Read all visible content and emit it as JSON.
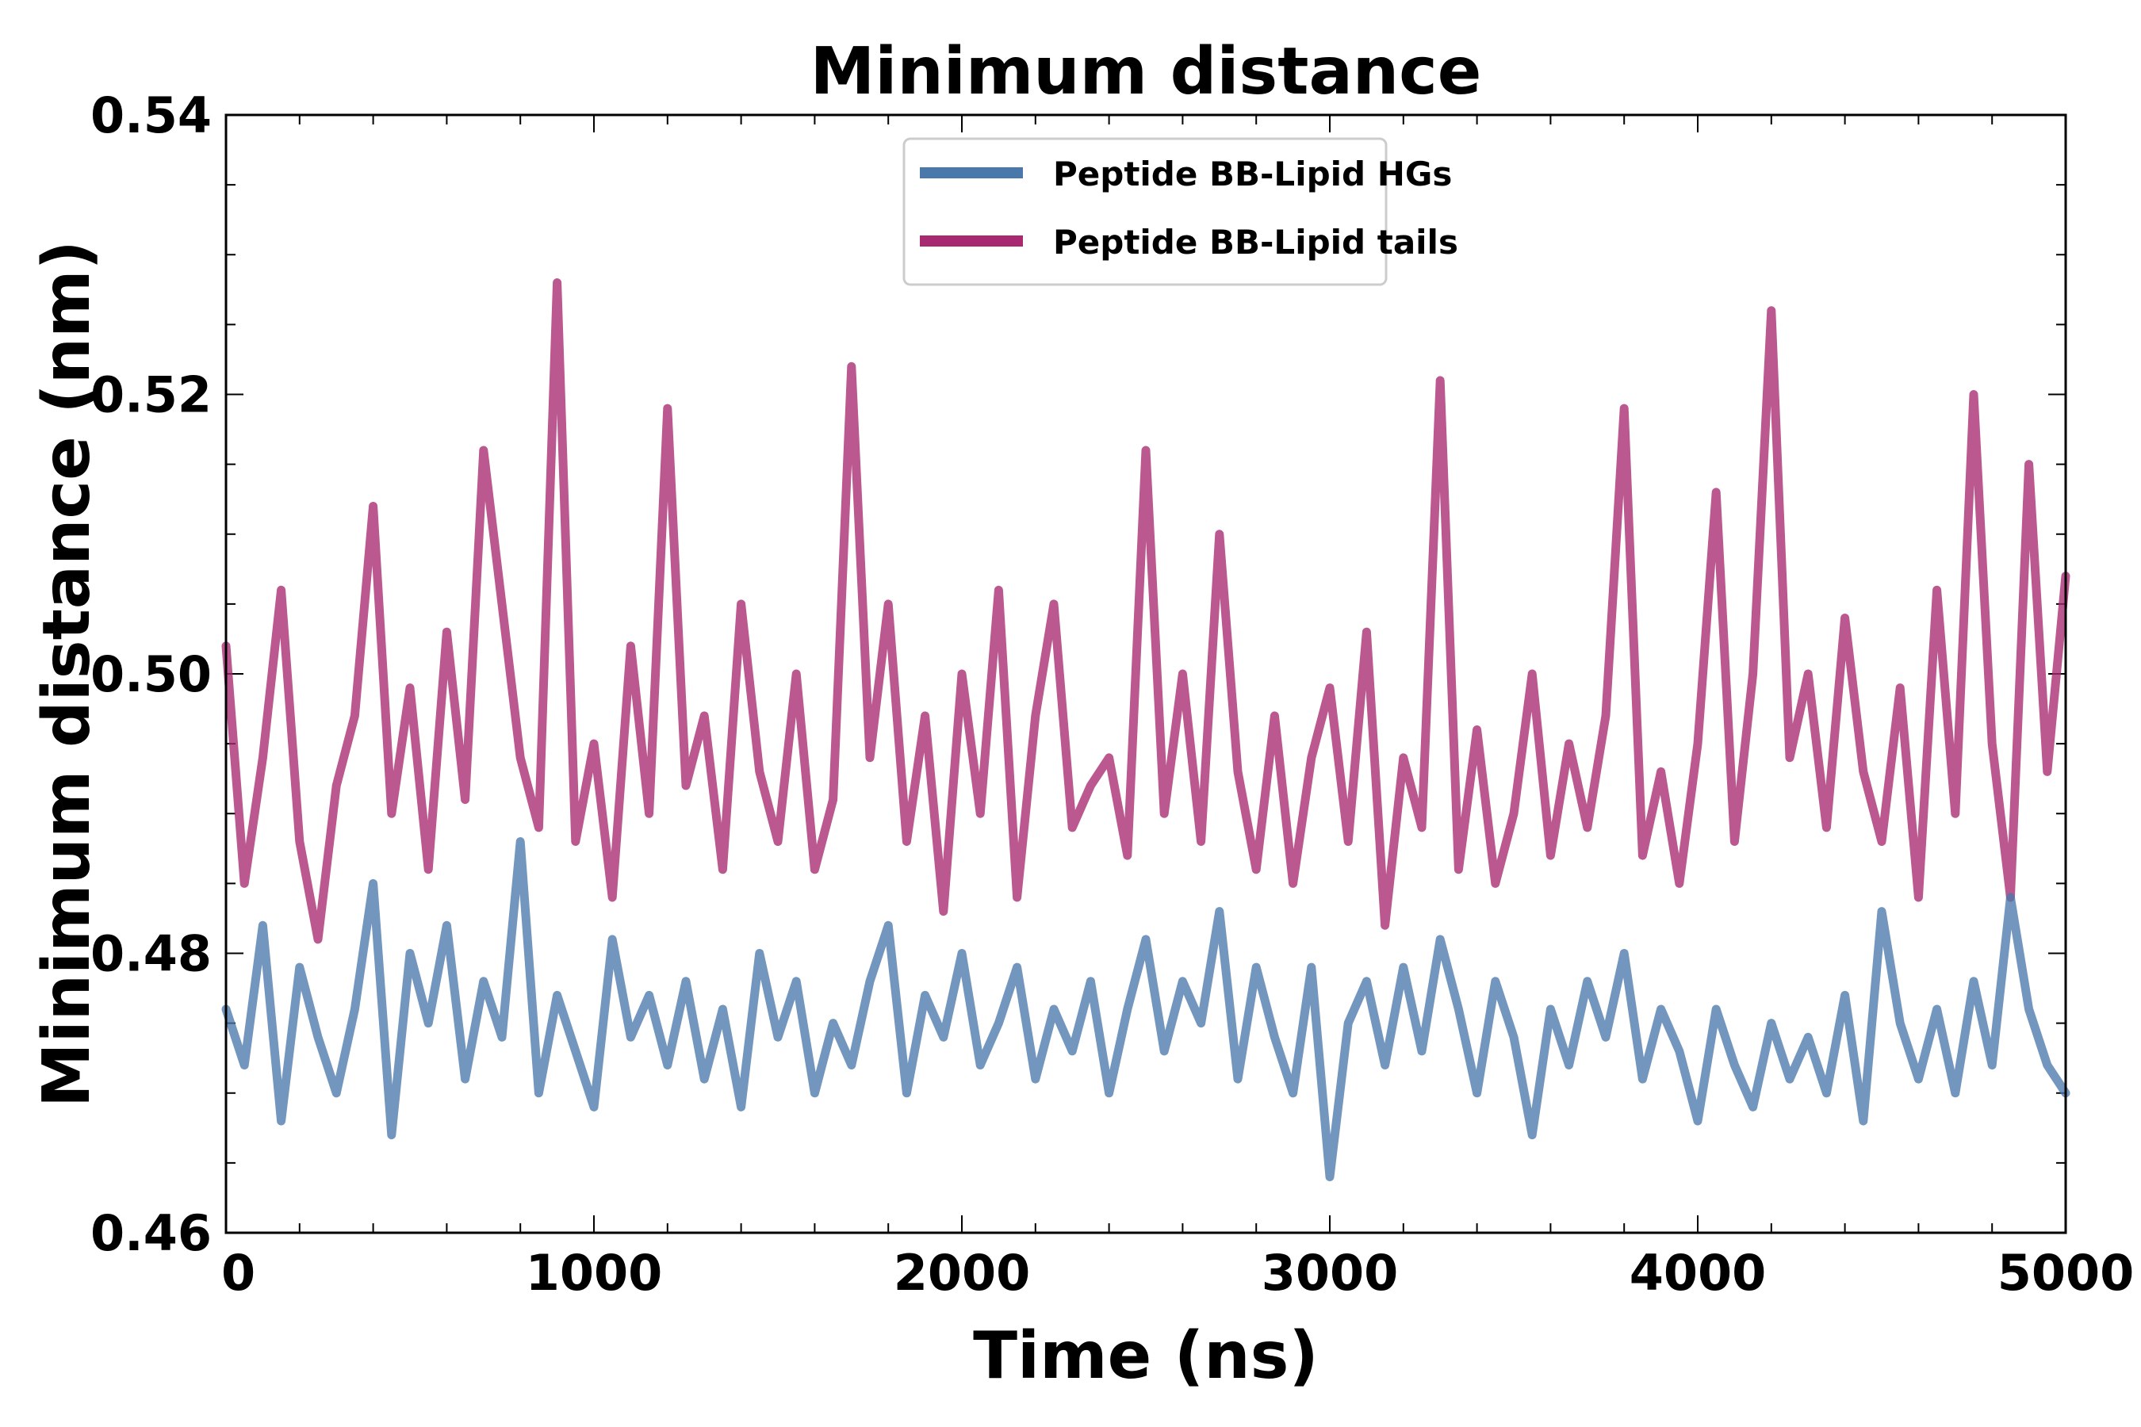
{
  "chart_data": {
    "type": "line",
    "title": "Minimum distance",
    "xlabel": "Time (ns)",
    "ylabel": "Minimum distance (nm)",
    "xlim": [
      0,
      5000
    ],
    "ylim": [
      0.46,
      0.54
    ],
    "xticks": [
      0,
      1000,
      2000,
      3000,
      4000,
      5000
    ],
    "xtick_labels": [
      "0",
      "1000",
      "2000",
      "3000",
      "4000",
      "5000"
    ],
    "yticks": [
      0.46,
      0.48,
      0.5,
      0.52,
      0.54
    ],
    "ytick_labels": [
      "0.46",
      "0.48",
      "0.50",
      "0.52",
      "0.54"
    ],
    "grid": false,
    "legend_position": "top-center",
    "series": [
      {
        "name": "Peptide BB-Lipid HGs",
        "color": "#4a78ab",
        "x": [
          0,
          50,
          100,
          150,
          200,
          250,
          300,
          350,
          400,
          450,
          500,
          550,
          600,
          650,
          700,
          750,
          800,
          850,
          900,
          950,
          1000,
          1050,
          1100,
          1150,
          1200,
          1250,
          1300,
          1350,
          1400,
          1450,
          1500,
          1550,
          1600,
          1650,
          1700,
          1750,
          1800,
          1850,
          1900,
          1950,
          2000,
          2050,
          2100,
          2150,
          2200,
          2250,
          2300,
          2350,
          2400,
          2450,
          2500,
          2550,
          2600,
          2650,
          2700,
          2750,
          2800,
          2850,
          2900,
          2950,
          3000,
          3050,
          3100,
          3150,
          3200,
          3250,
          3300,
          3350,
          3400,
          3450,
          3500,
          3550,
          3600,
          3650,
          3700,
          3750,
          3800,
          3850,
          3900,
          3950,
          4000,
          4050,
          4100,
          4150,
          4200,
          4250,
          4300,
          4350,
          4400,
          4450,
          4500,
          4550,
          4600,
          4650,
          4700,
          4750,
          4800,
          4850,
          4900,
          4950,
          5000
        ],
        "y": [
          0.476,
          0.472,
          0.482,
          0.468,
          0.479,
          0.474,
          0.47,
          0.476,
          0.485,
          0.467,
          0.48,
          0.475,
          0.482,
          0.471,
          0.478,
          0.474,
          0.488,
          0.47,
          0.477,
          0.473,
          0.469,
          0.481,
          0.474,
          0.477,
          0.472,
          0.478,
          0.471,
          0.476,
          0.469,
          0.48,
          0.474,
          0.478,
          0.47,
          0.475,
          0.472,
          0.478,
          0.482,
          0.47,
          0.477,
          0.474,
          0.48,
          0.472,
          0.475,
          0.479,
          0.471,
          0.476,
          0.473,
          0.478,
          0.47,
          0.476,
          0.481,
          0.473,
          0.478,
          0.475,
          0.483,
          0.471,
          0.479,
          0.474,
          0.47,
          0.479,
          0.464,
          0.475,
          0.478,
          0.472,
          0.479,
          0.473,
          0.481,
          0.476,
          0.47,
          0.478,
          0.474,
          0.467,
          0.476,
          0.472,
          0.478,
          0.474,
          0.48,
          0.471,
          0.476,
          0.473,
          0.468,
          0.476,
          0.472,
          0.469,
          0.475,
          0.471,
          0.474,
          0.47,
          0.477,
          0.468,
          0.483,
          0.475,
          0.471,
          0.476,
          0.47,
          0.478,
          0.472,
          0.484,
          0.476,
          0.472,
          0.47
        ]
      },
      {
        "name": "Peptide BB-Lipid tails",
        "color": "#a8296f",
        "x": [
          0,
          50,
          100,
          150,
          200,
          250,
          300,
          350,
          400,
          450,
          500,
          550,
          600,
          650,
          700,
          750,
          800,
          850,
          900,
          950,
          1000,
          1050,
          1100,
          1150,
          1200,
          1250,
          1300,
          1350,
          1400,
          1450,
          1500,
          1550,
          1600,
          1650,
          1700,
          1750,
          1800,
          1850,
          1900,
          1950,
          2000,
          2050,
          2100,
          2150,
          2200,
          2250,
          2300,
          2350,
          2400,
          2450,
          2500,
          2550,
          2600,
          2650,
          2700,
          2750,
          2800,
          2850,
          2900,
          2950,
          3000,
          3050,
          3100,
          3150,
          3200,
          3250,
          3300,
          3350,
          3400,
          3450,
          3500,
          3550,
          3600,
          3650,
          3700,
          3750,
          3800,
          3850,
          3900,
          3950,
          4000,
          4050,
          4100,
          4150,
          4200,
          4250,
          4300,
          4350,
          4400,
          4450,
          4500,
          4550,
          4600,
          4650,
          4700,
          4750,
          4800,
          4850,
          4900,
          4950,
          5000
        ],
        "y": [
          0.502,
          0.485,
          0.494,
          0.506,
          0.488,
          0.481,
          0.492,
          0.497,
          0.512,
          0.49,
          0.499,
          0.486,
          0.503,
          0.491,
          0.516,
          0.505,
          0.494,
          0.489,
          0.528,
          0.488,
          0.495,
          0.484,
          0.502,
          0.49,
          0.519,
          0.492,
          0.497,
          0.486,
          0.505,
          0.493,
          0.488,
          0.5,
          0.486,
          0.491,
          0.522,
          0.494,
          0.505,
          0.488,
          0.497,
          0.483,
          0.5,
          0.49,
          0.506,
          0.484,
          0.497,
          0.505,
          0.489,
          0.492,
          0.494,
          0.487,
          0.516,
          0.49,
          0.5,
          0.488,
          0.51,
          0.493,
          0.486,
          0.497,
          0.485,
          0.494,
          0.499,
          0.488,
          0.503,
          0.482,
          0.494,
          0.489,
          0.521,
          0.486,
          0.496,
          0.485,
          0.49,
          0.5,
          0.487,
          0.495,
          0.489,
          0.497,
          0.519,
          0.487,
          0.493,
          0.485,
          0.495,
          0.513,
          0.488,
          0.5,
          0.526,
          0.494,
          0.5,
          0.489,
          0.504,
          0.493,
          0.488,
          0.499,
          0.484,
          0.506,
          0.49,
          0.52,
          0.495,
          0.484,
          0.515,
          0.493,
          0.507
        ]
      }
    ]
  }
}
